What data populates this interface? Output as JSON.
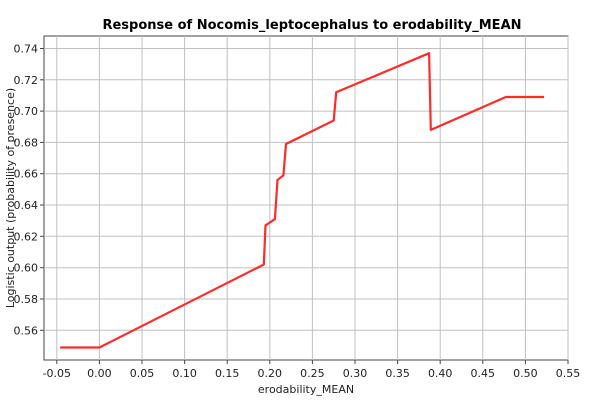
{
  "chart_data": {
    "type": "line",
    "title": "Response of Nocomis_leptocephalus to erodability_MEAN",
    "xlabel": "erodability_MEAN",
    "ylabel": "Logistic output (probability of presence)",
    "xlim": [
      -0.065,
      0.55
    ],
    "ylim": [
      0.541,
      0.748
    ],
    "grid": true,
    "x_ticks": [
      -0.05,
      0.0,
      0.05,
      0.1,
      0.15,
      0.2,
      0.25,
      0.3,
      0.35,
      0.4,
      0.45,
      0.5,
      0.55
    ],
    "x_tick_labels": [
      "-0.05",
      "0.00",
      "0.05",
      "0.10",
      "0.15",
      "0.20",
      "0.25",
      "0.30",
      "0.35",
      "0.40",
      "0.45",
      "0.50",
      "0.55"
    ],
    "y_ticks": [
      0.56,
      0.58,
      0.6,
      0.62,
      0.64,
      0.66,
      0.68,
      0.7,
      0.72,
      0.74
    ],
    "y_tick_labels": [
      "0.56",
      "0.58",
      "0.60",
      "0.62",
      "0.64",
      "0.66",
      "0.68",
      "0.70",
      "0.72",
      "0.74"
    ],
    "series": [
      {
        "color": "#ff2a2a",
        "x": [
          -0.046,
          0.0,
          0.193,
          0.195,
          0.206,
          0.209,
          0.216,
          0.219,
          0.275,
          0.278,
          0.282,
          0.387,
          0.389,
          0.477,
          0.522
        ],
        "y": [
          0.549,
          0.549,
          0.602,
          0.627,
          0.631,
          0.656,
          0.659,
          0.679,
          0.694,
          0.712,
          0.713,
          0.737,
          0.688,
          0.709,
          0.709
        ]
      }
    ]
  }
}
